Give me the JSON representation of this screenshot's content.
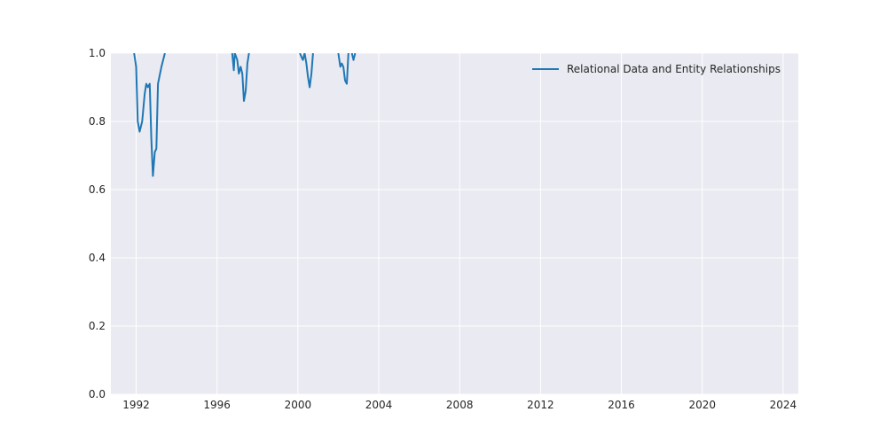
{
  "chart_data": {
    "type": "line",
    "x_axis": {
      "kind": "date-year",
      "ticks": [
        1992,
        1996,
        2000,
        2004,
        2008,
        2012,
        2016,
        2020,
        2024
      ],
      "tick_labels": [
        "1992",
        "1996",
        "2000",
        "2004",
        "2008",
        "2012",
        "2016",
        "2020",
        "2024"
      ],
      "range": [
        1990.75,
        2024.75
      ]
    },
    "y_axis": {
      "ticks": [
        0.0,
        0.2,
        0.4,
        0.6,
        0.8,
        1.0
      ],
      "tick_labels": [
        "0.0",
        "0.2",
        "0.4",
        "0.6",
        "0.8",
        "1.0"
      ],
      "range": [
        0.0,
        1.0
      ]
    },
    "grid": true,
    "legend": {
      "position": "upper-right"
    },
    "series": [
      {
        "name": "Relational Data and Entity Relationships",
        "color": "#1f77b4",
        "segments": [
          [
            {
              "x": 1991.9,
              "y": 1.0
            },
            {
              "x": 1992.0,
              "y": 0.96
            },
            {
              "x": 1992.08,
              "y": 0.8
            },
            {
              "x": 1992.17,
              "y": 0.77
            },
            {
              "x": 1992.3,
              "y": 0.8
            },
            {
              "x": 1992.42,
              "y": 0.88
            },
            {
              "x": 1992.5,
              "y": 0.91
            },
            {
              "x": 1992.58,
              "y": 0.9
            },
            {
              "x": 1992.67,
              "y": 0.91
            },
            {
              "x": 1992.75,
              "y": 0.75
            },
            {
              "x": 1992.83,
              "y": 0.64
            },
            {
              "x": 1992.92,
              "y": 0.71
            },
            {
              "x": 1993.0,
              "y": 0.72
            },
            {
              "x": 1993.08,
              "y": 0.91
            },
            {
              "x": 1993.25,
              "y": 0.96
            },
            {
              "x": 1993.42,
              "y": 1.0
            }
          ],
          [
            {
              "x": 1996.75,
              "y": 1.0
            },
            {
              "x": 1996.83,
              "y": 0.95
            },
            {
              "x": 1996.88,
              "y": 1.0
            },
            {
              "x": 1997.0,
              "y": 0.98
            },
            {
              "x": 1997.08,
              "y": 0.94
            },
            {
              "x": 1997.17,
              "y": 0.96
            },
            {
              "x": 1997.25,
              "y": 0.94
            },
            {
              "x": 1997.33,
              "y": 0.86
            },
            {
              "x": 1997.42,
              "y": 0.89
            },
            {
              "x": 1997.5,
              "y": 0.97
            },
            {
              "x": 1997.58,
              "y": 1.0
            }
          ],
          [
            {
              "x": 2000.1,
              "y": 1.0
            },
            {
              "x": 2000.17,
              "y": 0.99
            },
            {
              "x": 2000.25,
              "y": 0.98
            },
            {
              "x": 2000.33,
              "y": 1.0
            },
            {
              "x": 2000.42,
              "y": 0.97
            },
            {
              "x": 2000.5,
              "y": 0.93
            },
            {
              "x": 2000.58,
              "y": 0.9
            },
            {
              "x": 2000.67,
              "y": 0.94
            },
            {
              "x": 2000.75,
              "y": 1.0
            }
          ],
          [
            {
              "x": 2002.0,
              "y": 1.0
            },
            {
              "x": 2002.1,
              "y": 0.96
            },
            {
              "x": 2002.17,
              "y": 0.97
            },
            {
              "x": 2002.25,
              "y": 0.96
            },
            {
              "x": 2002.33,
              "y": 0.92
            },
            {
              "x": 2002.42,
              "y": 0.91
            },
            {
              "x": 2002.5,
              "y": 1.0
            }
          ],
          [
            {
              "x": 2002.67,
              "y": 1.0
            },
            {
              "x": 2002.75,
              "y": 0.98
            },
            {
              "x": 2002.83,
              "y": 1.0
            }
          ]
        ]
      }
    ]
  }
}
